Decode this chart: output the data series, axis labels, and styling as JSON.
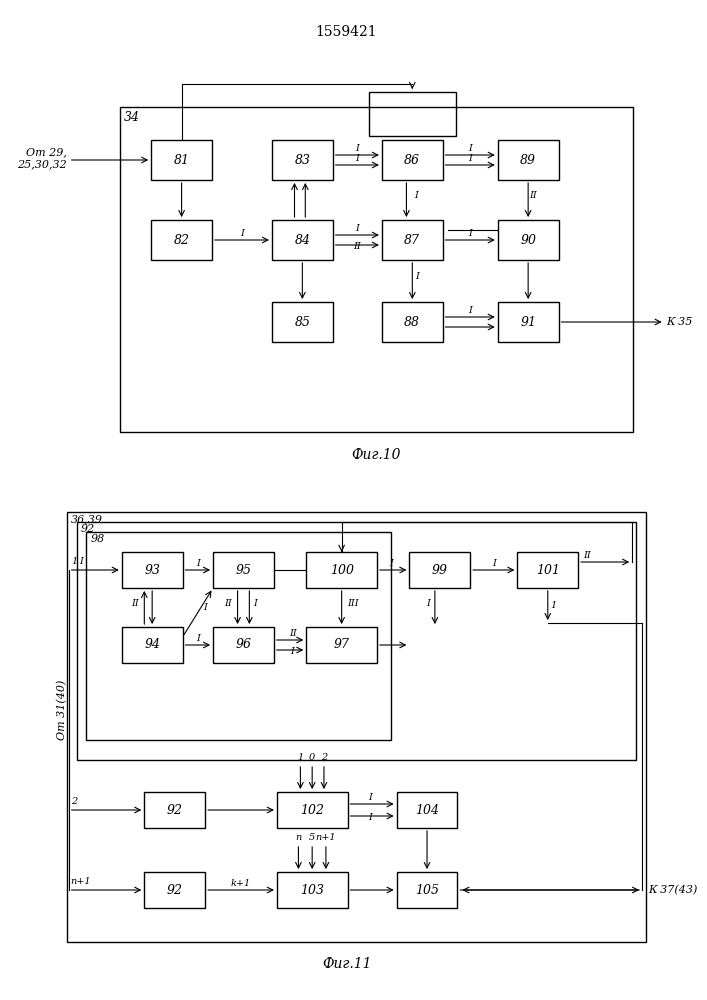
{
  "title": "1559421",
  "fig10_label": "Фиг.10",
  "fig11_label": "Фиг.11",
  "fig10_border_label": "34",
  "fig11_border_label1": "36,39",
  "fig11_border_label2": "92",
  "fig11_border_label3": "98",
  "input10": "От 29,\n25,30,32",
  "output10": "К 35",
  "input11": "От 31(40)",
  "output11": "К 37(43)"
}
